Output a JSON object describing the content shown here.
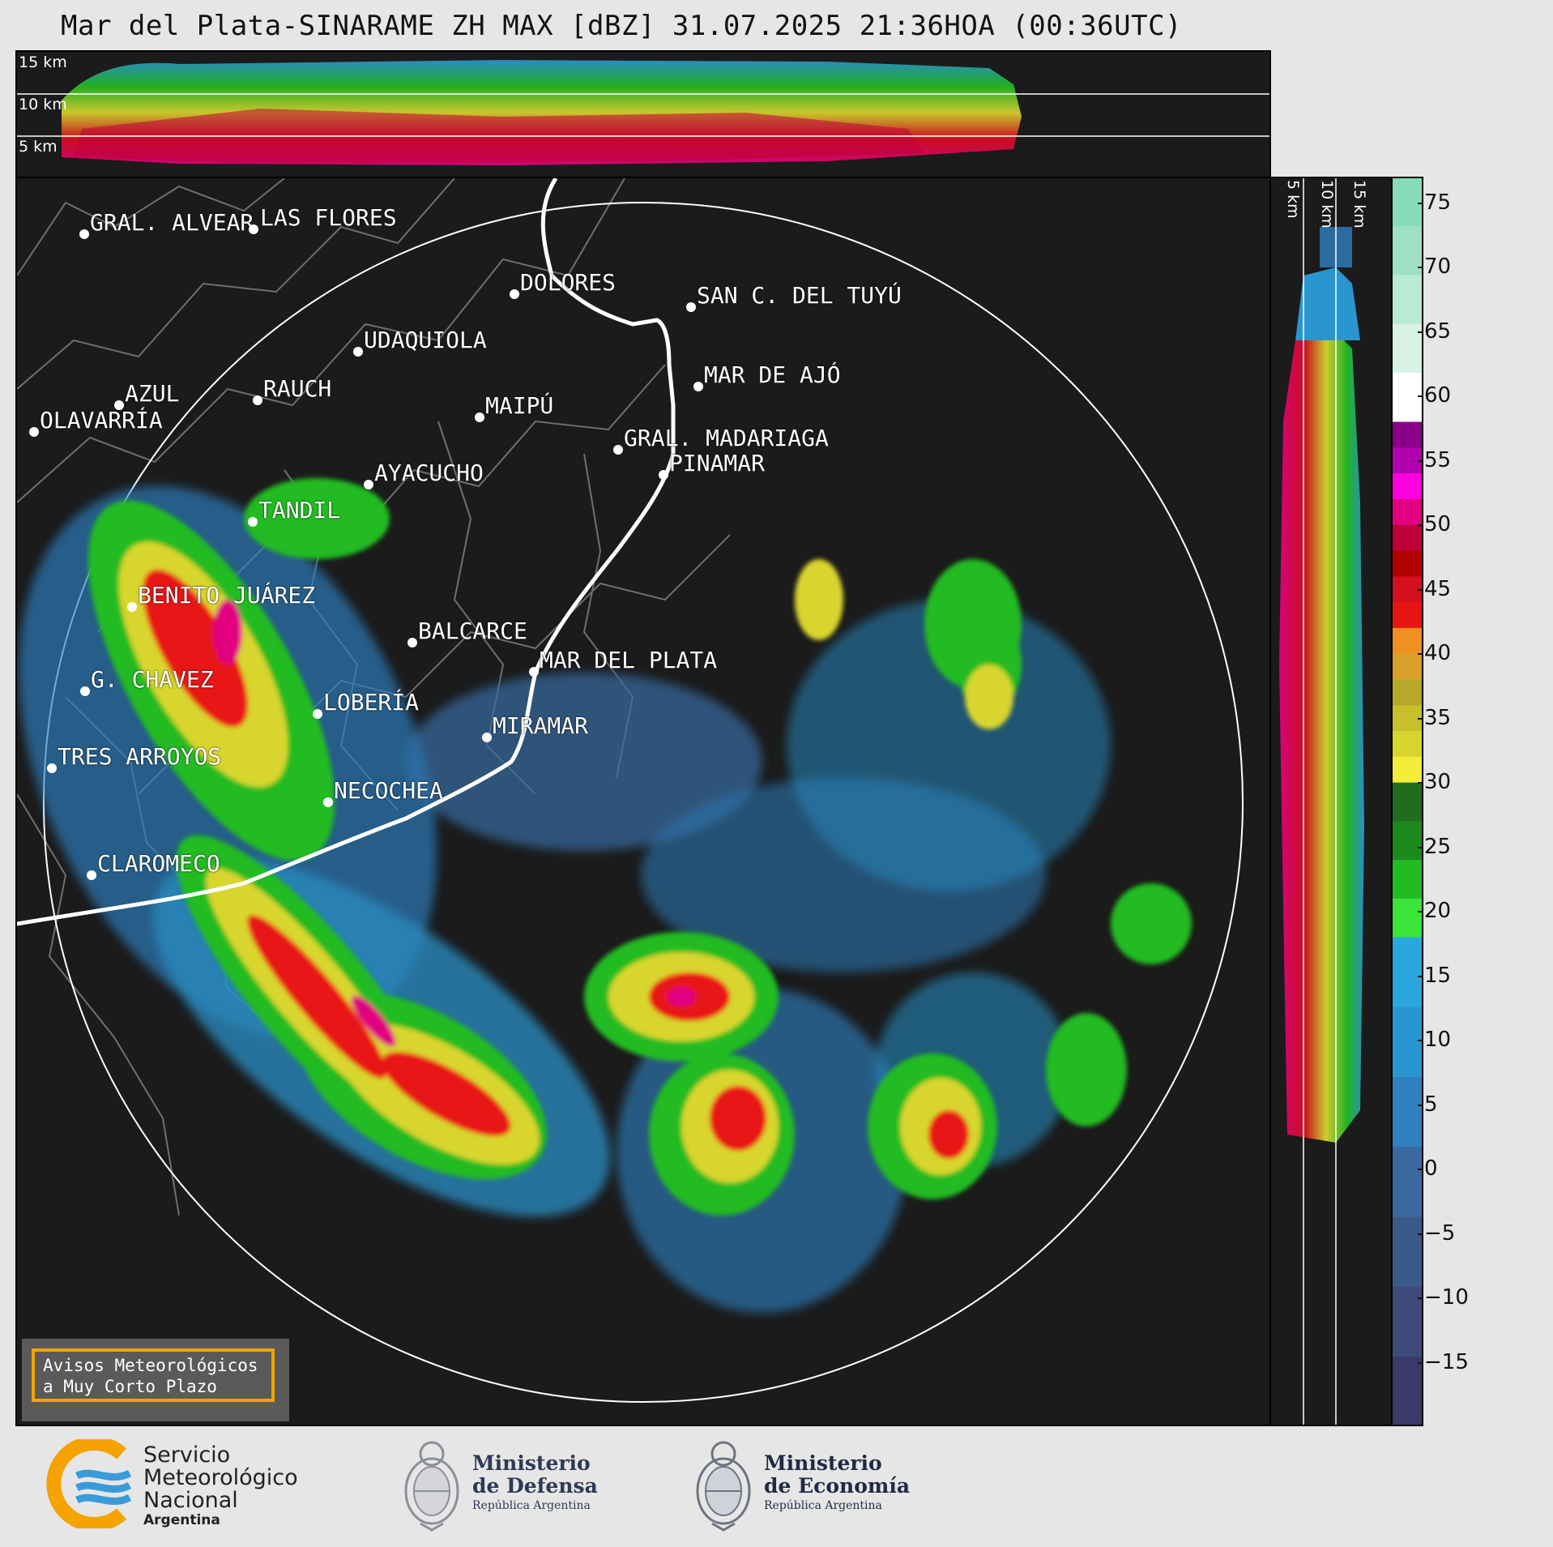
{
  "title": "Mar del Plata-SINARAME ZH MAX [dBZ] 31.07.2025 21:36HOA (00:36UTC)",
  "top_section": {
    "height_labels": [
      "15 km",
      "10 km",
      "5 km"
    ]
  },
  "side_section": {
    "height_labels": [
      "5 km",
      "10 km",
      "15 km"
    ]
  },
  "colorbar": {
    "unit": "dBZ",
    "ticks": [
      "75",
      "70",
      "65",
      "60",
      "55",
      "50",
      "45",
      "40",
      "35",
      "30",
      "25",
      "20",
      "15",
      "10",
      "5",
      "0",
      "−5",
      "−10",
      "−15"
    ],
    "range": [
      -20,
      77
    ],
    "colors": {
      "low": [
        "#3a3a6a",
        "#3d4a7a",
        "#3a5a8a",
        "#3a6aa0",
        "#2f80c0",
        "#2a96cf",
        "#2aa8dc"
      ],
      "green": [
        "#39e639",
        "#22bb22",
        "#1c8a1c",
        "#206d20"
      ],
      "yellow": [
        "#f2ee3a",
        "#d8d52e",
        "#c7bf2c",
        "#b5a82a",
        "#d9a12a",
        "#f09020"
      ],
      "red": [
        "#e81414",
        "#d40f1e",
        "#b30000",
        "#c0003a",
        "#e00080",
        "#ff00dd",
        "#b000b0",
        "#8a008a"
      ],
      "top": [
        "#ffffff",
        "#d8f3e6",
        "#b8ead4",
        "#9ee0c4",
        "#86dcb9"
      ]
    }
  },
  "cities": [
    {
      "name": "GRAL. ALVEAR"
    },
    {
      "name": "LAS FLORES"
    },
    {
      "name": "DOLORES"
    },
    {
      "name": "SAN C. DEL TUYÚ"
    },
    {
      "name": "UDAQUIOLA"
    },
    {
      "name": "MAR DE AJÓ"
    },
    {
      "name": "AZUL"
    },
    {
      "name": "RAUCH"
    },
    {
      "name": "OLAVARRÍA"
    },
    {
      "name": "MAIPÚ"
    },
    {
      "name": "GRAL. MADARIAGA"
    },
    {
      "name": "PINAMAR"
    },
    {
      "name": "AYACUCHO"
    },
    {
      "name": "TANDIL"
    },
    {
      "name": "BENITO JUÁREZ"
    },
    {
      "name": "BALCARCE"
    },
    {
      "name": "MAR DEL PLATA"
    },
    {
      "name": "G. CHAVEZ"
    },
    {
      "name": "LOBERÍA"
    },
    {
      "name": "MIRAMAR"
    },
    {
      "name": "TRES ARROYOS"
    },
    {
      "name": "NECOCHEA"
    },
    {
      "name": "CLAROMECO"
    }
  ],
  "alert_box": {
    "line1": "Avisos Meteorológicos",
    "line2": "a Muy Corto Plazo"
  },
  "logos": {
    "smn": {
      "line1": "Servicio",
      "line2": "Meteorológico",
      "line3": "Nacional",
      "line4": "Argentina",
      "icon": "smn-logo"
    },
    "defensa": {
      "line1": "Ministerio",
      "line2": "de Defensa",
      "line3": "República Argentina",
      "icon": "national-seal"
    },
    "economia": {
      "line1": "Ministerio",
      "line2": "de Economía",
      "line3": "República Argentina",
      "icon": "national-seal"
    }
  }
}
